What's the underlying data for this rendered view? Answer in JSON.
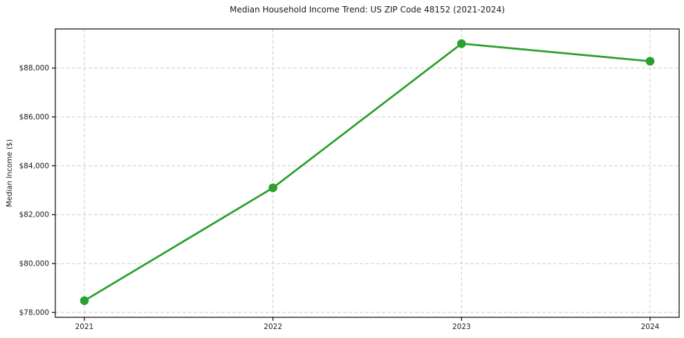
{
  "page": {
    "background": "#ffffff"
  },
  "chart_data": {
    "type": "line",
    "title": "Median Household Income Trend: US ZIP Code 48152 (2021-2024)",
    "xlabel": "",
    "ylabel": "Median Income ($)",
    "categories": [
      "2021",
      "2022",
      "2023",
      "2024"
    ],
    "values": [
      78480,
      83100,
      89000,
      88280
    ],
    "y_ticks": [
      78000,
      80000,
      82000,
      84000,
      86000,
      88000
    ],
    "y_tick_labels": [
      "$78,000",
      "$80,000",
      "$82,000",
      "$84,000",
      "$86,000",
      "$88,000"
    ],
    "ylim": [
      77800,
      89600
    ],
    "grid": true,
    "grid_style": "dashed",
    "legend": false,
    "line_color": "#2ca02c",
    "marker": "circle",
    "marker_color": "#2ca02c"
  }
}
